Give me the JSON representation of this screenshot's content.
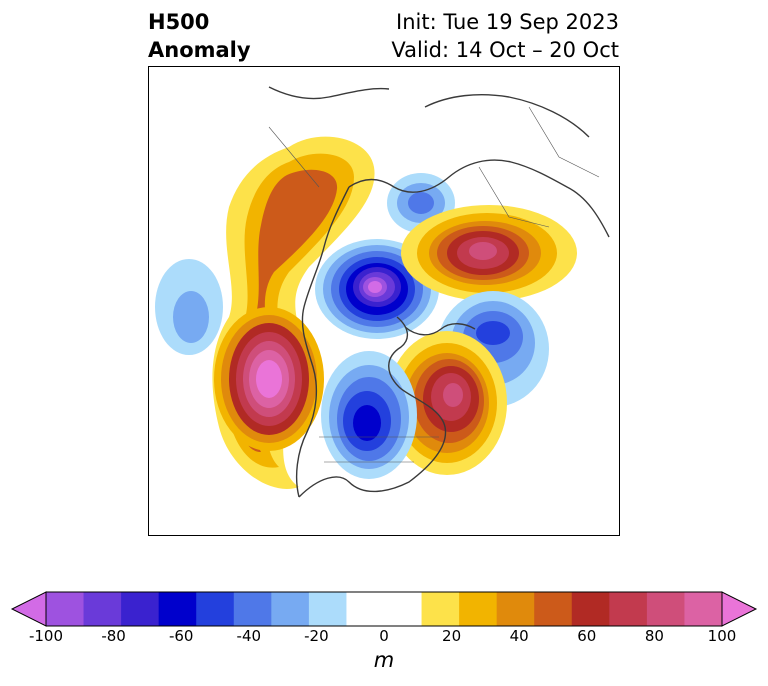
{
  "title": {
    "left_line1": "H500",
    "left_line2": "Anomaly",
    "right_line1": "Init: Tue 19 Sep 2023",
    "right_line2": "Valid: 14 Oct – 20 Oct"
  },
  "colorbar": {
    "unit": "m",
    "ticks": [
      "-100",
      "-80",
      "-60",
      "-40",
      "-20",
      "0",
      "20",
      "40",
      "60",
      "80",
      "100"
    ],
    "colors": [
      "#d26be6",
      "#9e52e0",
      "#6a3ad9",
      "#3a22cf",
      "#0000cc",
      "#2340dd",
      "#4f78e8",
      "#77aaf2",
      "#acdcfb",
      "#ffffff",
      "#ffffff",
      "#fde24a",
      "#f2b400",
      "#e08a0c",
      "#cc5a1a",
      "#b12a24",
      "#c23a4e",
      "#cf4e7a",
      "#dc62a4",
      "#ea74d8"
    ]
  },
  "map_features": {
    "anomaly_centers": [
      {
        "sign": "negative",
        "min_m": -100
      },
      {
        "sign": "negative",
        "min_m": -60
      },
      {
        "sign": "negative",
        "min_m": -40
      },
      {
        "sign": "negative",
        "min_m": -30
      },
      {
        "sign": "positive",
        "max_m": 100
      },
      {
        "sign": "positive",
        "max_m": 80
      },
      {
        "sign": "positive",
        "max_m": 60
      }
    ]
  }
}
